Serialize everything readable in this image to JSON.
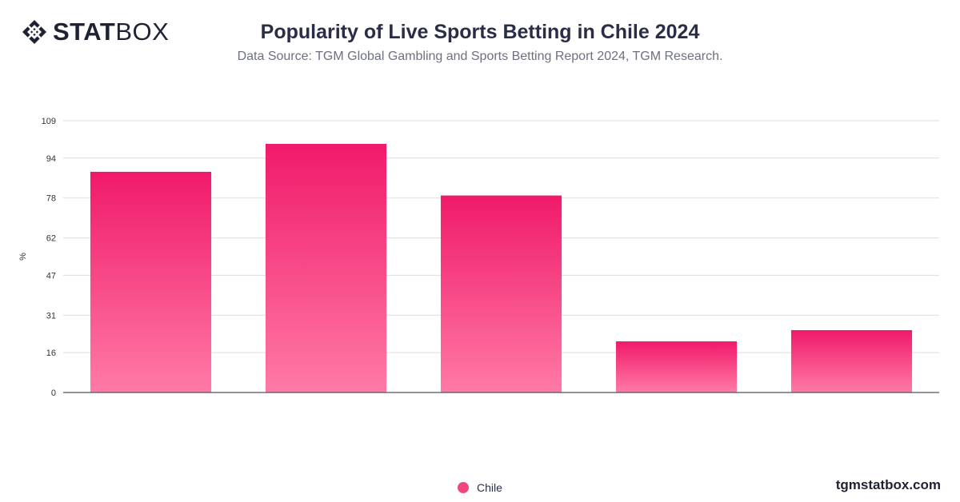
{
  "brand": {
    "logo_strong": "STAT",
    "logo_light": "BOX",
    "logo_icon": "statbox-diamond-icon",
    "site": "tgmstatbox.com"
  },
  "colors": {
    "bar_top": "#f01a6a",
    "bar_bottom": "#ff7aa6",
    "grid": "#dcdde2",
    "axis": "#555555",
    "text": "#2a2d47"
  },
  "chart_data": {
    "type": "bar",
    "title": "Popularity of Live Sports Betting in Chile 2024",
    "subtitle": "Data Source: TGM Global Gambling and Sports Betting Report 2024, TGM Research.",
    "ylabel": "%",
    "xlabel": "",
    "categories": [
      "",
      "",
      "",
      "",
      ""
    ],
    "series": [
      {
        "name": "Chile",
        "values": [
          88.5,
          99.7,
          79,
          20.5,
          25
        ]
      }
    ],
    "yticks": [
      0,
      16,
      31,
      47,
      62,
      78,
      94,
      109
    ],
    "ylim": [
      0,
      109
    ],
    "grid": true,
    "legend": "bottom-center"
  }
}
